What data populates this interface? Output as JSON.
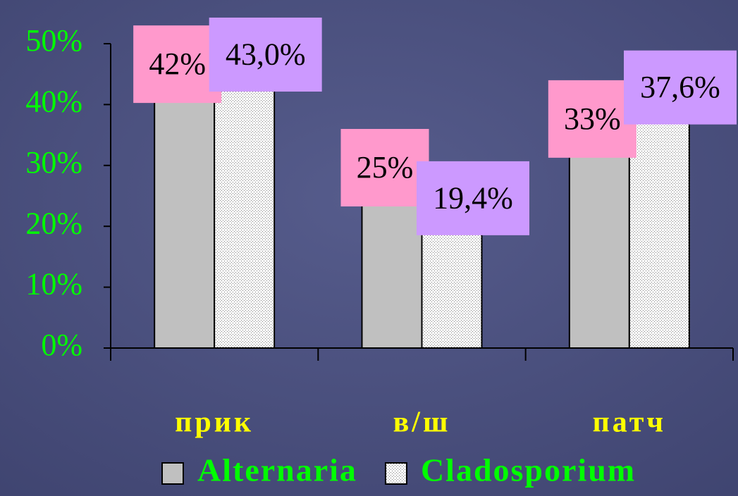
{
  "chart_data": {
    "type": "bar",
    "categories": [
      "прик",
      "в/ш",
      "патч"
    ],
    "series": [
      {
        "name": "Alternaria",
        "color": "#c0c0c0",
        "label_color": "#ff99cc",
        "values": [
          42,
          25,
          33
        ],
        "value_labels": [
          "42%",
          "25%",
          "33%"
        ]
      },
      {
        "name": "Cladosporium",
        "color": "#ffffff",
        "pattern": "dots",
        "label_color": "#cc99ff",
        "values": [
          43.0,
          19.4,
          37.6
        ],
        "value_labels": [
          "43,0%",
          "19,4%",
          "37,6%"
        ]
      }
    ],
    "ylim": [
      0,
      50
    ],
    "yticks": [
      {
        "value": 0,
        "label": "0%"
      },
      {
        "value": 10,
        "label": "10%"
      },
      {
        "value": 20,
        "label": "20%"
      },
      {
        "value": 30,
        "label": "30%"
      },
      {
        "value": 40,
        "label": "40%"
      },
      {
        "value": 50,
        "label": "50%"
      }
    ],
    "legend": "bottom"
  }
}
